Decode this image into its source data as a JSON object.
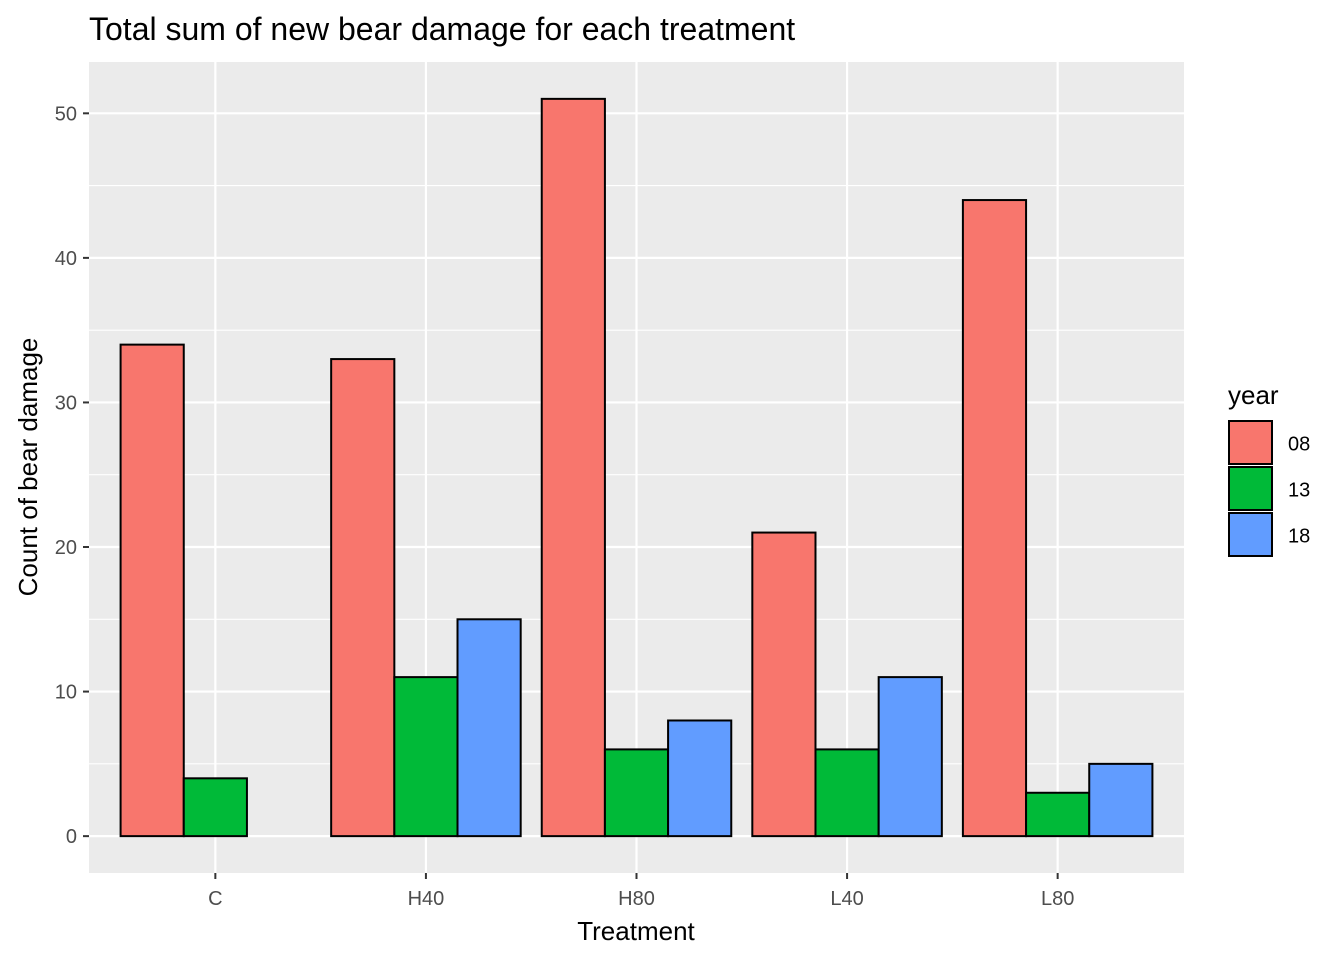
{
  "chart_data": {
    "type": "bar",
    "title": "Total sum of new bear damage for each treatment",
    "xlabel": "Treatment",
    "ylabel": "Count of bear damage",
    "categories": [
      "C",
      "H40",
      "H80",
      "L40",
      "L80"
    ],
    "series": [
      {
        "name": "08",
        "color": "#F8766D",
        "values": [
          34,
          33,
          51,
          21,
          44
        ]
      },
      {
        "name": "13",
        "color": "#00BA38",
        "values": [
          4,
          11,
          6,
          6,
          3
        ]
      },
      {
        "name": "18",
        "color": "#619CFF",
        "values": [
          0,
          15,
          8,
          11,
          5
        ]
      }
    ],
    "ylim": [
      -2.55,
      53.55
    ],
    "yticks": [
      0,
      10,
      20,
      30,
      40,
      50
    ],
    "grid": true,
    "legend": {
      "title": "year",
      "position": "right"
    },
    "colors": {
      "panel": "#EBEBEB",
      "grid": "#FFFFFF",
      "bar_outline": "#000000"
    }
  }
}
